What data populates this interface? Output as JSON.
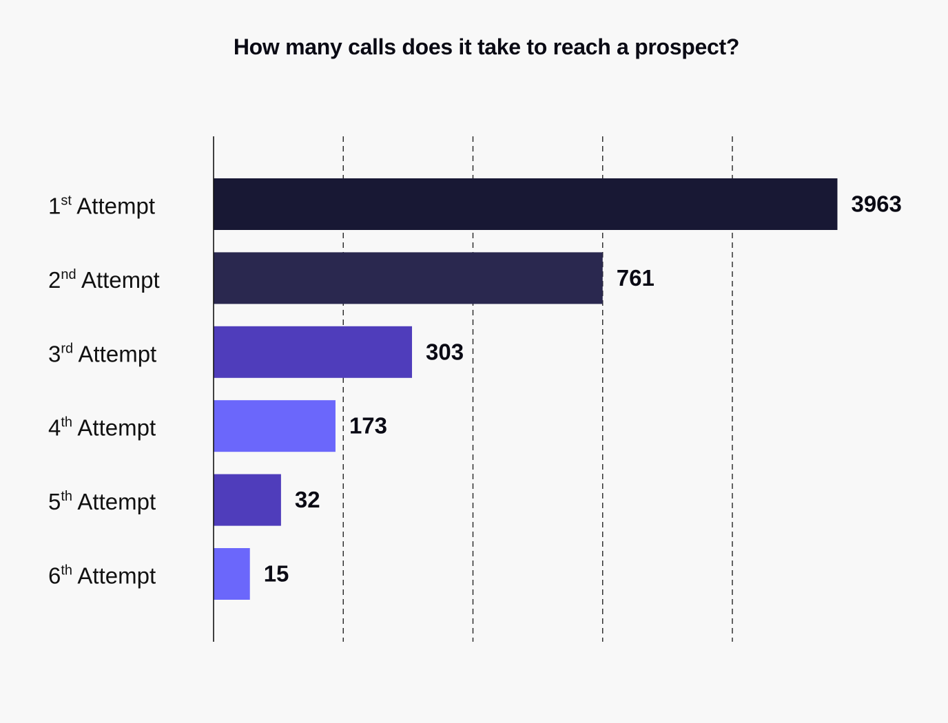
{
  "chart_data": {
    "type": "bar",
    "orientation": "horizontal",
    "title": "How many calls does it take to reach a prospect?",
    "categories": [
      {
        "number": "1",
        "suffix": "st",
        "word": "Attempt"
      },
      {
        "number": "2",
        "suffix": "nd",
        "word": "Attempt"
      },
      {
        "number": "3",
        "suffix": "rd",
        "word": "Attempt"
      },
      {
        "number": "4",
        "suffix": "th",
        "word": "Attempt"
      },
      {
        "number": "5",
        "suffix": "th",
        "word": "Attempt"
      },
      {
        "number": "6",
        "suffix": "th",
        "word": "Attempt"
      }
    ],
    "values": [
      3963,
      761,
      303,
      173,
      32,
      15
    ],
    "bar_lengths": [
      4.81,
      3.0,
      1.53,
      0.94,
      0.52,
      0.28
    ],
    "bar_colors": [
      "#181834",
      "#2a284f",
      "#4f3dbb",
      "#6b67fb",
      "#4f3dbb",
      "#6b67fb"
    ],
    "gridlines": "dashed vertical",
    "legend": "none",
    "xlabel": "",
    "ylabel": "",
    "note": "Bar lengths are not drawn to a linear scale of the values; bar_lengths gives each bar's length in gridline intervals."
  }
}
